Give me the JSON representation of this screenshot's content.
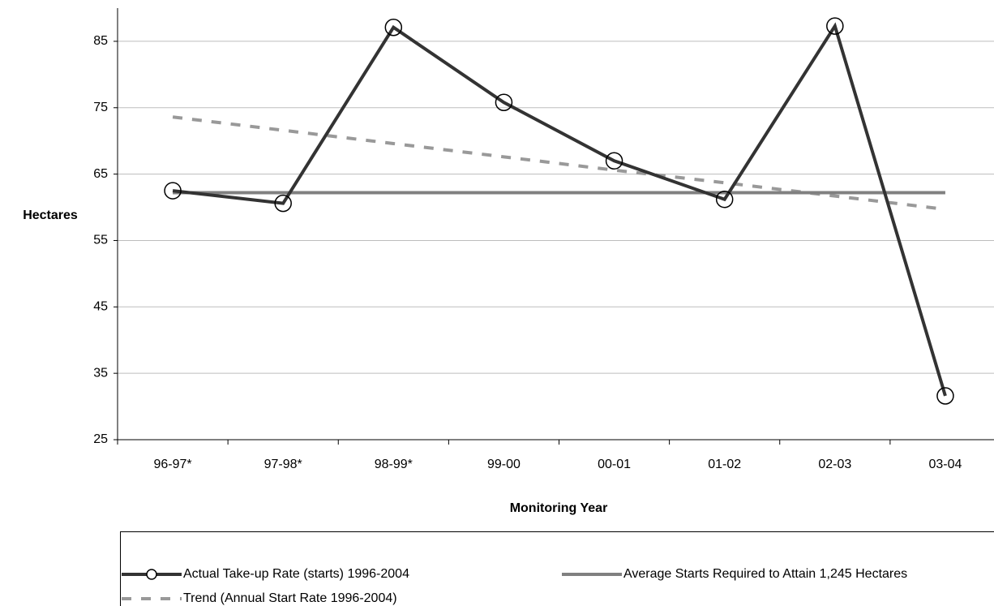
{
  "chart_data": {
    "type": "line",
    "y_label": "Hectares",
    "x_label": "Monitoring Year",
    "categories": [
      "96-97*",
      "97-98*",
      "98-99*",
      "99-00",
      "00-01",
      "01-02",
      "02-03",
      "03-04"
    ],
    "series": [
      {
        "name": "Actual Take-up Rate (starts) 1996-2004",
        "color": "#333333",
        "style": "solid",
        "marker": "circle",
        "values": [
          62.5,
          60.6,
          87.1,
          75.8,
          67.0,
          61.2,
          87.3,
          31.6
        ]
      },
      {
        "name": "Average Starts Required to Attain 1,245 Hectares",
        "color": "#808080",
        "style": "solid",
        "values": [
          62.2,
          62.2,
          62.2,
          62.2,
          62.2,
          62.2,
          62.2,
          62.2
        ]
      },
      {
        "name": "Trend (Annual Start Rate 1996-2004)",
        "color": "#999999",
        "style": "dashed",
        "values": [
          73.6,
          71.6,
          69.6,
          67.6,
          65.6,
          63.7,
          61.7,
          59.7
        ]
      }
    ],
    "ylim": [
      25,
      90
    ],
    "yticks": [
      25,
      35,
      45,
      55,
      65,
      75,
      85
    ],
    "grid": true
  }
}
